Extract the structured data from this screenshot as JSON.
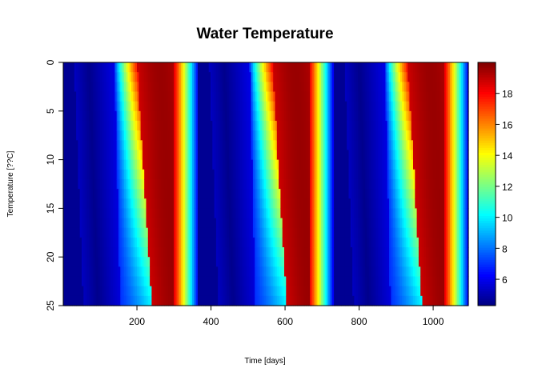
{
  "chart_data": {
    "type": "heatmap",
    "title": "Water Temperature",
    "xlabel": "Time [days]",
    "ylabel": "Temperature [??C]",
    "xlim": [
      1,
      1095
    ],
    "ylim": [
      25,
      0
    ],
    "x_ticks": [
      200,
      400,
      600,
      800,
      1000
    ],
    "y_ticks": [
      0,
      5,
      10,
      15,
      20,
      25
    ],
    "colorbar": {
      "min": 4.3,
      "max": 20,
      "ticks": [
        6,
        8,
        10,
        12,
        14,
        16,
        18
      ]
    },
    "colormap": [
      "#00007F",
      "#0000FF",
      "#007FFF",
      "#00FFFF",
      "#7FFF7F",
      "#FFFF00",
      "#FF7F00",
      "#FF0000",
      "#7F0000"
    ],
    "period_days": 365,
    "model": {
      "depths": [
        0,
        25
      ],
      "t_min_day_surface": [
        70,
        435,
        800
      ],
      "t_min_day_bottom": [
        95,
        460,
        825
      ],
      "rise_start_surface": 140,
      "rise_start_bottom": 155,
      "surface_peak_day": 200,
      "bottom_jump_day": 240,
      "cooling_end_day": 250
    }
  }
}
